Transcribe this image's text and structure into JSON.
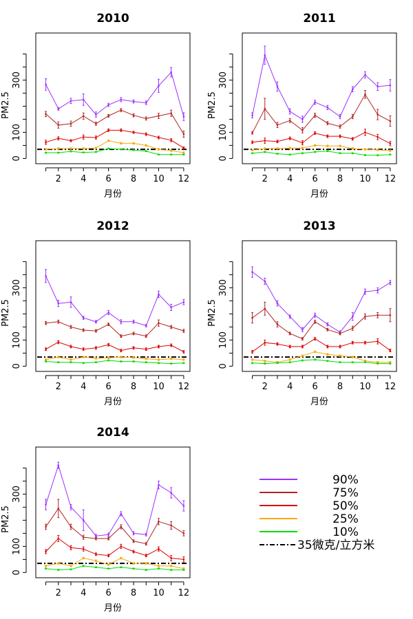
{
  "chart_data": [
    {
      "type": "line",
      "title": "2010",
      "xlabel": "月份",
      "ylabel": "PM2.5",
      "x": [
        1,
        2,
        3,
        4,
        5,
        6,
        7,
        8,
        9,
        10,
        11,
        12
      ],
      "xticks": [
        2,
        4,
        6,
        8,
        10,
        12
      ],
      "yticks": [
        0,
        100,
        300
      ],
      "xlim": [
        0.2,
        12.5
      ],
      "ylim": [
        -20,
        480
      ],
      "series": [
        {
          "name": "90%",
          "color": "#9B30FF",
          "values": [
            283,
            190,
            220,
            225,
            168,
            205,
            225,
            218,
            213,
            278,
            330,
            160
          ],
          "errors": [
            22,
            5,
            10,
            22,
            10,
            6,
            8,
            6,
            7,
            25,
            18,
            15
          ]
        },
        {
          "name": "75%",
          "color": "#B22222",
          "values": [
            170,
            128,
            133,
            162,
            133,
            163,
            185,
            165,
            153,
            163,
            173,
            93
          ],
          "errors": [
            10,
            12,
            10,
            12,
            6,
            5,
            6,
            6,
            6,
            10,
            12,
            12
          ]
        },
        {
          "name": "50%",
          "color": "#DD0000",
          "values": [
            62,
            77,
            68,
            82,
            80,
            108,
            108,
            100,
            93,
            80,
            70,
            40
          ],
          "errors": [
            8,
            6,
            4,
            8,
            6,
            5,
            5,
            4,
            5,
            5,
            6,
            4
          ]
        },
        {
          "name": "25%",
          "color": "#FFA500",
          "values": [
            35,
            38,
            38,
            38,
            40,
            68,
            58,
            58,
            50,
            35,
            30,
            22
          ],
          "errors": [
            3,
            3,
            3,
            3,
            3,
            3,
            3,
            3,
            3,
            3,
            3,
            3
          ]
        },
        {
          "name": "10%",
          "color": "#00DD00",
          "values": [
            22,
            22,
            27,
            23,
            25,
            38,
            35,
            32,
            28,
            15,
            15,
            15
          ],
          "errors": [
            2,
            2,
            2,
            2,
            2,
            2,
            2,
            2,
            2,
            2,
            2,
            2
          ]
        }
      ],
      "reference_line": {
        "name": "35微克/立方米",
        "value": 35
      }
    },
    {
      "type": "line",
      "title": "2011",
      "xlabel": "月份",
      "ylabel": "PM2.5",
      "x": [
        1,
        2,
        3,
        4,
        5,
        6,
        7,
        8,
        9,
        10,
        11,
        12
      ],
      "xticks": [
        2,
        4,
        6,
        8,
        10,
        12
      ],
      "yticks": [
        0,
        100,
        300
      ],
      "xlim": [
        0.2,
        12.5
      ],
      "ylim": [
        -20,
        480
      ],
      "series": [
        {
          "name": "90%",
          "color": "#9B30FF",
          "values": [
            165,
            395,
            275,
            180,
            150,
            215,
            195,
            160,
            265,
            320,
            275,
            280
          ],
          "errors": [
            10,
            35,
            18,
            10,
            12,
            8,
            8,
            8,
            10,
            12,
            15,
            22
          ]
        },
        {
          "name": "75%",
          "color": "#B22222",
          "values": [
            98,
            190,
            128,
            145,
            108,
            165,
            135,
            122,
            160,
            245,
            168,
            143
          ],
          "errors": [
            5,
            40,
            10,
            8,
            10,
            8,
            6,
            6,
            8,
            15,
            20,
            20
          ]
        },
        {
          "name": "50%",
          "color": "#DD0000",
          "values": [
            62,
            68,
            65,
            77,
            60,
            97,
            85,
            85,
            75,
            100,
            82,
            57
          ],
          "errors": [
            5,
            10,
            5,
            5,
            8,
            5,
            5,
            5,
            5,
            12,
            10,
            8
          ]
        },
        {
          "name": "25%",
          "color": "#FFA500",
          "values": [
            32,
            38,
            38,
            40,
            40,
            50,
            48,
            48,
            38,
            35,
            33,
            30
          ],
          "errors": [
            3,
            3,
            3,
            3,
            3,
            3,
            3,
            3,
            3,
            3,
            3,
            3
          ]
        },
        {
          "name": "10%",
          "color": "#00DD00",
          "values": [
            20,
            25,
            18,
            15,
            20,
            25,
            28,
            20,
            20,
            13,
            12,
            15
          ],
          "errors": [
            2,
            2,
            2,
            2,
            2,
            2,
            2,
            2,
            2,
            2,
            2,
            2
          ]
        }
      ],
      "reference_line": {
        "name": "35微克/立方米",
        "value": 35
      }
    },
    {
      "type": "line",
      "title": "2012",
      "xlabel": "月份",
      "ylabel": "PM2.5",
      "x": [
        1,
        2,
        3,
        4,
        5,
        6,
        7,
        8,
        9,
        10,
        11,
        12
      ],
      "xticks": [
        2,
        4,
        6,
        8,
        10,
        12
      ],
      "yticks": [
        0,
        100,
        300
      ],
      "xlim": [
        0.2,
        12.5
      ],
      "ylim": [
        -20,
        480
      ],
      "series": [
        {
          "name": "90%",
          "color": "#9B30FF",
          "values": [
            345,
            240,
            245,
            185,
            170,
            205,
            170,
            170,
            155,
            275,
            225,
            245
          ],
          "errors": [
            25,
            12,
            20,
            6,
            5,
            8,
            8,
            6,
            5,
            12,
            12,
            10
          ]
        },
        {
          "name": "75%",
          "color": "#B22222",
          "values": [
            165,
            170,
            150,
            138,
            135,
            160,
            115,
            125,
            115,
            165,
            150,
            135
          ],
          "errors": [
            6,
            6,
            6,
            5,
            5,
            5,
            5,
            5,
            5,
            12,
            6,
            6
          ]
        },
        {
          "name": "50%",
          "color": "#DD0000",
          "values": [
            65,
            92,
            75,
            65,
            70,
            82,
            60,
            70,
            65,
            75,
            80,
            55
          ],
          "errors": [
            5,
            6,
            5,
            5,
            5,
            5,
            5,
            5,
            5,
            5,
            5,
            5
          ]
        },
        {
          "name": "25%",
          "color": "#FFA500",
          "values": [
            25,
            35,
            25,
            35,
            30,
            32,
            35,
            33,
            28,
            25,
            28,
            25
          ],
          "errors": [
            3,
            3,
            3,
            3,
            3,
            3,
            3,
            3,
            3,
            3,
            3,
            3
          ]
        },
        {
          "name": "10%",
          "color": "#00DD00",
          "values": [
            18,
            15,
            15,
            12,
            15,
            22,
            18,
            18,
            15,
            12,
            10,
            12
          ],
          "errors": [
            2,
            2,
            2,
            2,
            2,
            2,
            2,
            2,
            2,
            2,
            2,
            2
          ]
        }
      ],
      "reference_line": {
        "name": "35微克/立方米",
        "value": 35
      }
    },
    {
      "type": "line",
      "title": "2013",
      "xlabel": "月份",
      "ylabel": "PM2.5",
      "x": [
        1,
        2,
        3,
        4,
        5,
        6,
        7,
        8,
        9,
        10,
        11,
        12
      ],
      "xticks": [
        2,
        4,
        6,
        8,
        10,
        12
      ],
      "yticks": [
        0,
        100,
        300
      ],
      "xlim": [
        0.2,
        12.5
      ],
      "ylim": [
        -20,
        480
      ],
      "series": [
        {
          "name": "90%",
          "color": "#9B30FF",
          "values": [
            360,
            325,
            240,
            190,
            140,
            195,
            160,
            130,
            190,
            285,
            290,
            320
          ],
          "errors": [
            20,
            12,
            10,
            6,
            8,
            8,
            6,
            5,
            15,
            10,
            10,
            8
          ]
        },
        {
          "name": "75%",
          "color": "#B22222",
          "values": [
            185,
            220,
            160,
            125,
            105,
            170,
            140,
            125,
            145,
            190,
            195,
            195
          ],
          "errors": [
            20,
            25,
            10,
            5,
            5,
            6,
            5,
            5,
            8,
            10,
            10,
            25
          ]
        },
        {
          "name": "50%",
          "color": "#DD0000",
          "values": [
            55,
            90,
            85,
            75,
            75,
            105,
            75,
            75,
            90,
            90,
            95,
            60
          ],
          "errors": [
            5,
            10,
            5,
            5,
            5,
            5,
            5,
            5,
            5,
            5,
            10,
            5
          ]
        },
        {
          "name": "25%",
          "color": "#FFA500",
          "values": [
            25,
            20,
            15,
            25,
            40,
            55,
            45,
            40,
            35,
            20,
            15,
            15
          ],
          "errors": [
            3,
            3,
            3,
            3,
            3,
            3,
            3,
            3,
            3,
            3,
            3,
            3
          ]
        },
        {
          "name": "10%",
          "color": "#00DD00",
          "values": [
            12,
            10,
            12,
            15,
            22,
            25,
            20,
            15,
            15,
            15,
            10,
            10
          ],
          "errors": [
            2,
            2,
            2,
            2,
            2,
            2,
            2,
            2,
            2,
            2,
            2,
            2
          ]
        }
      ],
      "reference_line": {
        "name": "35微克/立方米",
        "value": 35
      }
    },
    {
      "type": "line",
      "title": "2014",
      "xlabel": "月份",
      "ylabel": "PM2.5",
      "x": [
        1,
        2,
        3,
        4,
        5,
        6,
        7,
        8,
        9,
        10,
        11,
        12
      ],
      "xticks": [
        2,
        4,
        6,
        8,
        10,
        12
      ],
      "yticks": [
        0,
        100,
        300
      ],
      "xlim": [
        0.2,
        12.5
      ],
      "ylim": [
        -20,
        480
      ],
      "series": [
        {
          "name": "90%",
          "color": "#9B30FF",
          "values": [
            260,
            410,
            250,
            200,
            140,
            145,
            225,
            150,
            145,
            335,
            305,
            255
          ],
          "errors": [
            20,
            12,
            10,
            40,
            6,
            6,
            8,
            6,
            5,
            15,
            20,
            20
          ]
        },
        {
          "name": "75%",
          "color": "#B22222",
          "values": [
            175,
            245,
            175,
            135,
            130,
            130,
            175,
            120,
            110,
            195,
            180,
            150
          ],
          "errors": [
            10,
            35,
            10,
            8,
            5,
            5,
            8,
            5,
            5,
            12,
            15,
            10
          ]
        },
        {
          "name": "50%",
          "color": "#DD0000",
          "values": [
            80,
            130,
            95,
            90,
            70,
            65,
            100,
            80,
            65,
            90,
            55,
            50
          ],
          "errors": [
            8,
            12,
            8,
            8,
            5,
            5,
            8,
            5,
            5,
            8,
            10,
            10
          ]
        },
        {
          "name": "25%",
          "color": "#FFA500",
          "values": [
            25,
            35,
            25,
            55,
            45,
            30,
            55,
            35,
            35,
            25,
            25,
            15
          ],
          "errors": [
            3,
            3,
            3,
            3,
            3,
            3,
            3,
            3,
            3,
            3,
            3,
            3
          ]
        },
        {
          "name": "10%",
          "color": "#00DD00",
          "values": [
            15,
            10,
            12,
            25,
            20,
            15,
            20,
            15,
            10,
            15,
            10,
            10
          ],
          "errors": [
            2,
            2,
            2,
            2,
            2,
            2,
            2,
            2,
            2,
            2,
            2,
            2
          ]
        }
      ],
      "reference_line": {
        "name": "35微克/立方米",
        "value": 35
      }
    }
  ],
  "legend": {
    "placement": "bottom-right",
    "items": [
      {
        "label": "90%",
        "color": "#9B30FF",
        "style": "solid"
      },
      {
        "label": "75%",
        "color": "#B22222",
        "style": "solid"
      },
      {
        "label": "50%",
        "color": "#DD0000",
        "style": "solid"
      },
      {
        "label": "25%",
        "color": "#FFA500",
        "style": "solid"
      },
      {
        "label": "10%",
        "color": "#00DD00",
        "style": "solid"
      },
      {
        "label": "35微克/立方米",
        "color": "#000000",
        "style": "dashdot"
      }
    ]
  }
}
